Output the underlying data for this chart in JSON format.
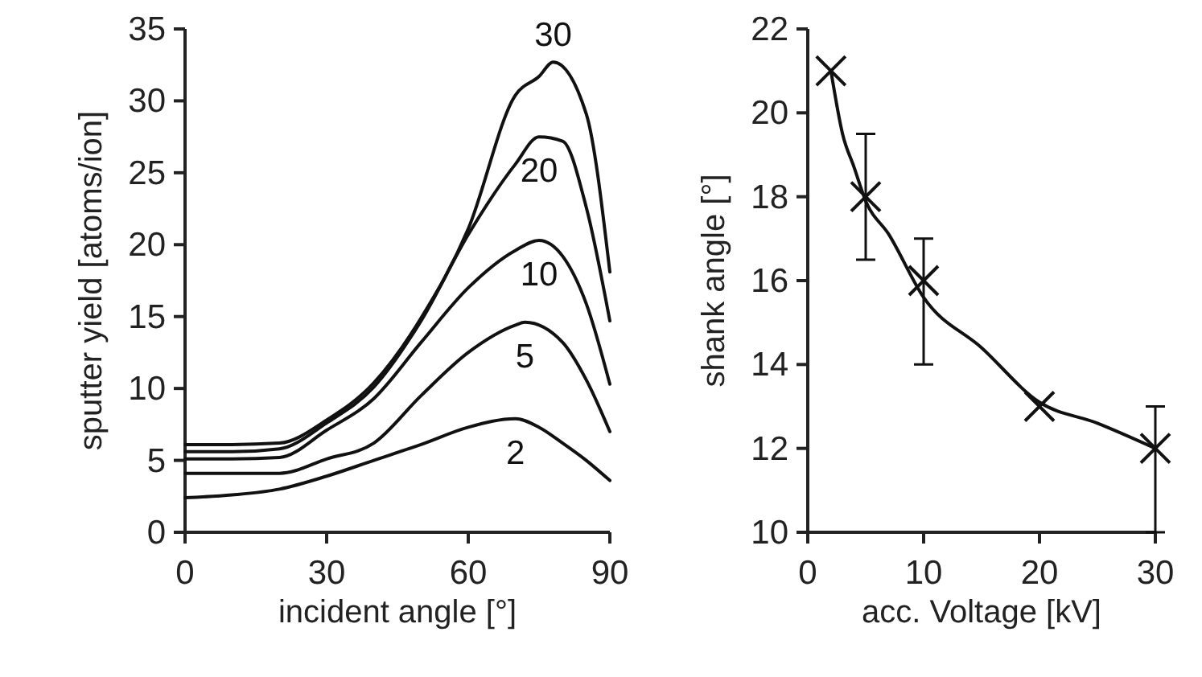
{
  "chart_data": [
    {
      "type": "line",
      "xlabel": "incident angle [°]",
      "ylabel": "sputter yield [atoms/ion]",
      "xlim": [
        0,
        90
      ],
      "ylim": [
        0,
        35
      ],
      "xticks": [
        0,
        30,
        60,
        90
      ],
      "yticks": [
        0,
        5,
        10,
        15,
        20,
        25,
        30,
        35
      ],
      "grid": false,
      "marker": "none",
      "series": [
        {
          "name": "30",
          "color": "#111111",
          "x": [
            0,
            10,
            20,
            30,
            40,
            50,
            60,
            70,
            75,
            78,
            85,
            90
          ],
          "values": [
            6.1,
            6.1,
            6.2,
            7.8,
            10.4,
            14.9,
            21.1,
            30.4,
            31.7,
            32.7,
            29.1,
            18.1
          ]
        },
        {
          "name": "20",
          "color": "#111111",
          "x": [
            0,
            10,
            20,
            30,
            40,
            50,
            60,
            70,
            75,
            80,
            85,
            90
          ],
          "values": [
            5.6,
            5.6,
            5.8,
            7.6,
            10.1,
            14.7,
            20.7,
            25.6,
            27.5,
            27.2,
            22.6,
            14.7
          ]
        },
        {
          "name": "10",
          "color": "#111111",
          "x": [
            0,
            10,
            20,
            30,
            40,
            50,
            60,
            70,
            75,
            80,
            85,
            90
          ],
          "values": [
            5.1,
            5.1,
            5.2,
            7.1,
            9.3,
            13.2,
            17.0,
            19.6,
            20.3,
            19.2,
            15.9,
            10.3
          ]
        },
        {
          "name": "5",
          "color": "#111111",
          "x": [
            0,
            10,
            20,
            30,
            40,
            50,
            60,
            70,
            72,
            80,
            85,
            90
          ],
          "values": [
            4.1,
            4.1,
            4.1,
            5.1,
            6.2,
            9.5,
            12.5,
            14.4,
            14.6,
            13.2,
            10.6,
            7.0
          ]
        },
        {
          "name": "2",
          "color": "#111111",
          "x": [
            0,
            10,
            20,
            30,
            40,
            50,
            60,
            70,
            75,
            80,
            85,
            90
          ],
          "values": [
            2.4,
            2.6,
            3.0,
            3.9,
            5.0,
            6.1,
            7.3,
            7.9,
            7.3,
            6.2,
            5.0,
            3.6
          ]
        }
      ]
    },
    {
      "type": "scatter",
      "xlabel": "acc. Voltage [kV]",
      "ylabel": "shank angle [°]",
      "xlim": [
        0,
        30
      ],
      "ylim": [
        10,
        22
      ],
      "xticks": [
        0,
        10,
        20,
        30
      ],
      "yticks": [
        10,
        12,
        14,
        16,
        18,
        20,
        22
      ],
      "grid": false,
      "series": [
        {
          "type": "line",
          "marker": "none",
          "color": "#111111",
          "x": [
            2,
            3,
            4,
            5,
            7,
            10,
            15,
            20,
            25,
            30
          ],
          "values": [
            21.0,
            19.5,
            18.7,
            17.9,
            17.1,
            15.6,
            14.4,
            13.1,
            12.6,
            12.0
          ]
        },
        {
          "marker": "cross",
          "color": "#111111",
          "x": [
            2,
            5,
            10,
            20,
            30
          ],
          "values": [
            21,
            18,
            16,
            13,
            12
          ],
          "errors": [
            null,
            [
              16.5,
              19.5
            ],
            [
              14,
              17
            ],
            null,
            [
              10,
              13
            ]
          ]
        }
      ]
    }
  ]
}
